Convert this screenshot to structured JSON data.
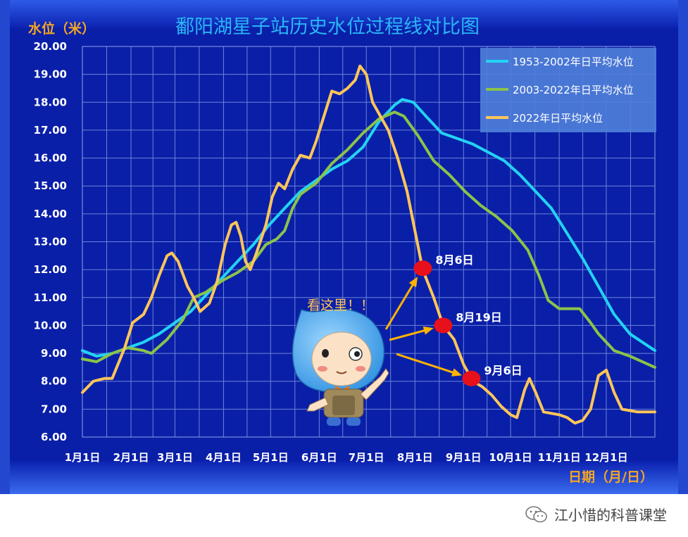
{
  "chart_data": {
    "type": "line",
    "title": "鄱阳湖星子站历史水位过程线对比图",
    "ylabel": "水位（米）",
    "xlabel": "日期（月/日）",
    "ylim": [
      6.0,
      20.0
    ],
    "yticks": [
      "6.00",
      "7.00",
      "8.00",
      "9.00",
      "10.00",
      "11.00",
      "12.00",
      "13.00",
      "14.00",
      "15.00",
      "16.00",
      "17.00",
      "18.00",
      "19.00",
      "20.00"
    ],
    "xlim": [
      1,
      366
    ],
    "xticks": [
      {
        "day": 1,
        "label": "1月1日"
      },
      {
        "day": 32,
        "label": "2月1日"
      },
      {
        "day": 60,
        "label": "3月1日"
      },
      {
        "day": 91,
        "label": "4月1日"
      },
      {
        "day": 121,
        "label": "5月1日"
      },
      {
        "day": 152,
        "label": "6月1日"
      },
      {
        "day": 182,
        "label": "7月1日"
      },
      {
        "day": 213,
        "label": "8月1日"
      },
      {
        "day": 244,
        "label": "9月1日"
      },
      {
        "day": 274,
        "label": "10月1日"
      },
      {
        "day": 305,
        "label": "11月1日"
      },
      {
        "day": 335,
        "label": "12月1日"
      }
    ],
    "grid": true,
    "legend_position": "top-right",
    "series": [
      {
        "name": "1953-2002年日平均水位",
        "color": "#22d3f5",
        "points": [
          [
            1,
            9.1
          ],
          [
            10,
            8.9
          ],
          [
            20,
            9.0
          ],
          [
            30,
            9.2
          ],
          [
            40,
            9.4
          ],
          [
            50,
            9.7
          ],
          [
            60,
            10.1
          ],
          [
            70,
            10.5
          ],
          [
            80,
            11.1
          ],
          [
            90,
            11.7
          ],
          [
            100,
            12.3
          ],
          [
            110,
            12.9
          ],
          [
            120,
            13.6
          ],
          [
            130,
            14.2
          ],
          [
            140,
            14.8
          ],
          [
            150,
            15.2
          ],
          [
            160,
            15.6
          ],
          [
            170,
            15.9
          ],
          [
            180,
            16.4
          ],
          [
            190,
            17.3
          ],
          [
            200,
            17.9
          ],
          [
            205,
            18.1
          ],
          [
            212,
            18.0
          ],
          [
            220,
            17.5
          ],
          [
            230,
            16.9
          ],
          [
            240,
            16.7
          ],
          [
            250,
            16.5
          ],
          [
            260,
            16.2
          ],
          [
            270,
            15.9
          ],
          [
            280,
            15.4
          ],
          [
            290,
            14.8
          ],
          [
            300,
            14.2
          ],
          [
            310,
            13.3
          ],
          [
            320,
            12.4
          ],
          [
            330,
            11.4
          ],
          [
            340,
            10.4
          ],
          [
            350,
            9.7
          ],
          [
            366,
            9.1
          ]
        ]
      },
      {
        "name": "2003-2022年日平均水位",
        "color": "#8bc34a",
        "points": [
          [
            1,
            8.8
          ],
          [
            10,
            8.7
          ],
          [
            20,
            9.0
          ],
          [
            30,
            9.2
          ],
          [
            40,
            9.1
          ],
          [
            45,
            9.0
          ],
          [
            55,
            9.5
          ],
          [
            65,
            10.2
          ],
          [
            72,
            11.0
          ],
          [
            80,
            11.2
          ],
          [
            90,
            11.6
          ],
          [
            100,
            11.9
          ],
          [
            110,
            12.3
          ],
          [
            118,
            12.9
          ],
          [
            125,
            13.1
          ],
          [
            130,
            13.4
          ],
          [
            135,
            14.2
          ],
          [
            140,
            14.7
          ],
          [
            150,
            15.1
          ],
          [
            160,
            15.8
          ],
          [
            170,
            16.3
          ],
          [
            180,
            16.9
          ],
          [
            190,
            17.4
          ],
          [
            200,
            17.65
          ],
          [
            206,
            17.5
          ],
          [
            215,
            16.8
          ],
          [
            225,
            15.9
          ],
          [
            235,
            15.4
          ],
          [
            245,
            14.8
          ],
          [
            255,
            14.3
          ],
          [
            265,
            13.9
          ],
          [
            275,
            13.4
          ],
          [
            285,
            12.7
          ],
          [
            292,
            11.8
          ],
          [
            298,
            10.9
          ],
          [
            305,
            10.6
          ],
          [
            310,
            10.6
          ],
          [
            318,
            10.6
          ],
          [
            325,
            10.1
          ],
          [
            330,
            9.7
          ],
          [
            340,
            9.1
          ],
          [
            350,
            8.9
          ],
          [
            366,
            8.5
          ]
        ]
      },
      {
        "name": "2022年日平均水位",
        "color": "#ffc658",
        "points": [
          [
            1,
            7.6
          ],
          [
            8,
            8.0
          ],
          [
            15,
            8.1
          ],
          [
            20,
            8.1
          ],
          [
            28,
            9.2
          ],
          [
            33,
            10.1
          ],
          [
            40,
            10.4
          ],
          [
            45,
            11.0
          ],
          [
            50,
            11.8
          ],
          [
            55,
            12.5
          ],
          [
            58,
            12.6
          ],
          [
            62,
            12.3
          ],
          [
            68,
            11.4
          ],
          [
            72,
            11.0
          ],
          [
            76,
            10.5
          ],
          [
            82,
            10.8
          ],
          [
            87,
            11.6
          ],
          [
            92,
            12.9
          ],
          [
            96,
            13.6
          ],
          [
            99,
            13.7
          ],
          [
            102,
            13.2
          ],
          [
            105,
            12.3
          ],
          [
            108,
            12.0
          ],
          [
            112,
            12.6
          ],
          [
            118,
            13.6
          ],
          [
            122,
            14.6
          ],
          [
            126,
            15.1
          ],
          [
            130,
            14.9
          ],
          [
            135,
            15.6
          ],
          [
            140,
            16.1
          ],
          [
            146,
            16.0
          ],
          [
            150,
            16.6
          ],
          [
            155,
            17.5
          ],
          [
            160,
            18.4
          ],
          [
            165,
            18.3
          ],
          [
            170,
            18.5
          ],
          [
            175,
            18.8
          ],
          [
            178,
            19.3
          ],
          [
            182,
            19.0
          ],
          [
            186,
            18.0
          ],
          [
            190,
            17.6
          ],
          [
            196,
            17.0
          ],
          [
            202,
            16.0
          ],
          [
            208,
            14.8
          ],
          [
            213,
            13.4
          ],
          [
            218,
            12.0
          ],
          [
            225,
            11.0
          ],
          [
            231,
            10.0
          ],
          [
            238,
            9.5
          ],
          [
            244,
            8.6
          ],
          [
            250,
            8.0
          ],
          [
            256,
            7.8
          ],
          [
            262,
            7.5
          ],
          [
            268,
            7.1
          ],
          [
            274,
            6.8
          ],
          [
            278,
            6.7
          ],
          [
            283,
            7.7
          ],
          [
            286,
            8.1
          ],
          [
            290,
            7.6
          ],
          [
            295,
            6.9
          ],
          [
            305,
            6.8
          ],
          [
            310,
            6.7
          ],
          [
            315,
            6.5
          ],
          [
            320,
            6.6
          ],
          [
            325,
            7.0
          ],
          [
            330,
            8.2
          ],
          [
            335,
            8.4
          ],
          [
            340,
            7.6
          ],
          [
            345,
            7.0
          ],
          [
            355,
            6.9
          ],
          [
            366,
            6.9
          ]
        ]
      }
    ],
    "annotations": [
      {
        "label": "8月6日",
        "day": 218,
        "value": 12.05
      },
      {
        "label": "8月19日",
        "day": 231,
        "value": 10.0
      },
      {
        "label": "9月6日",
        "day": 249,
        "value": 8.1
      }
    ],
    "callout_text": "看这里！！"
  },
  "colors": {
    "background": "#0a1fa8",
    "frame": "#0033b8",
    "title": "#29b6f6",
    "axis_title": "#f5a623",
    "tick_label": "#ffffff",
    "grid": "#6d83d6",
    "legend_bg": "#4f7fd9",
    "marker": "#e8101a",
    "arrow": "#ffb300"
  },
  "footer": {
    "watermark_text": "江小惜的科普课堂",
    "icon": "wechat-icon"
  },
  "mascot": {
    "icon": "water-drop-mascot"
  }
}
